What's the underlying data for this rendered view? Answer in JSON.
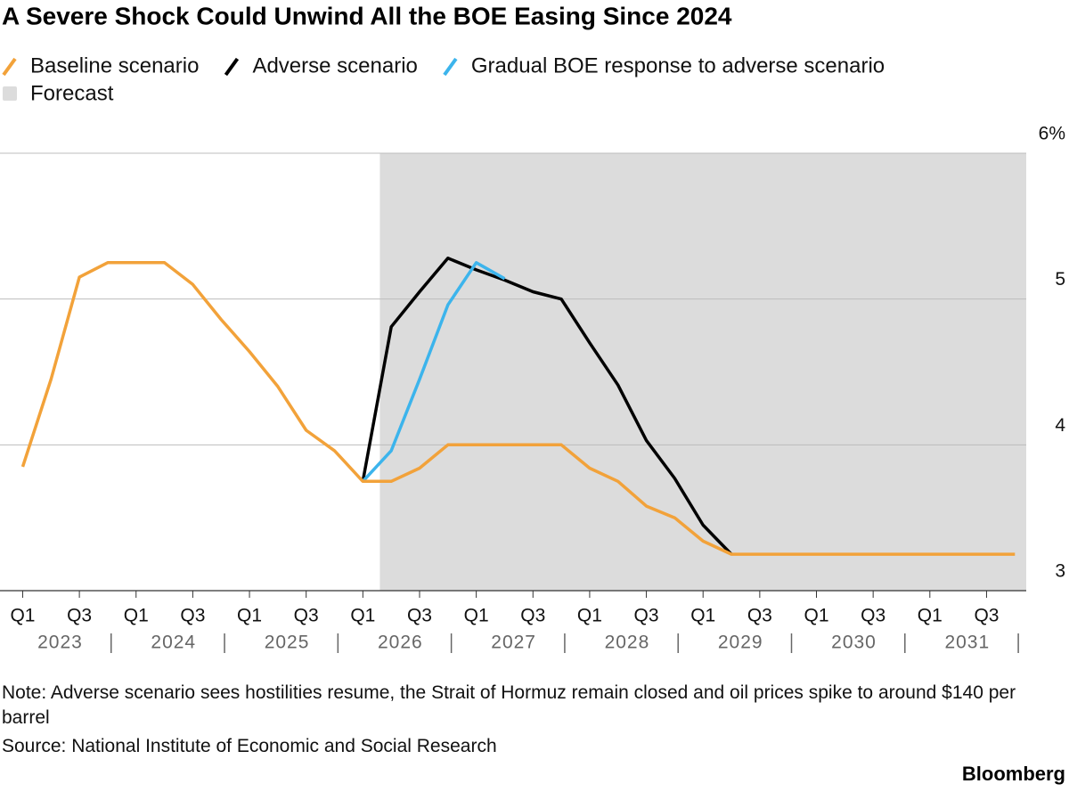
{
  "chart_data": {
    "type": "line",
    "title": "A Severe Shock Could Unwind All the BOE Easing Since 2024",
    "note": "Note: Adverse scenario sees hostilities resume, the Strait of Hormuz remain closed and oil prices spike to around $140 per barrel",
    "source": "Source: National Institute of Economic and Social Research",
    "brand": "Bloomberg",
    "forecast": {
      "label": "Forecast",
      "color": "#dcdcdc",
      "range": [
        2026.15,
        2031.85
      ]
    },
    "x": [
      2023,
      2023.25,
      2023.5,
      2023.75,
      2024,
      2024.25,
      2024.5,
      2024.75,
      2025,
      2025.25,
      2025.5,
      2025.75,
      2026,
      2026.25,
      2026.5,
      2026.75,
      2027,
      2027.25,
      2027.5,
      2027.75,
      2028,
      2028.25,
      2028.5,
      2028.75,
      2029,
      2029.25,
      2029.5,
      2029.75,
      2030,
      2030.25,
      2030.5,
      2030.75,
      2031,
      2031.25,
      2031.5,
      2031.75
    ],
    "series": [
      {
        "name": "Adverse scenario",
        "color": "#000000",
        "values": [
          null,
          null,
          null,
          null,
          null,
          null,
          null,
          null,
          null,
          null,
          null,
          null,
          3.75,
          4.81,
          5.05,
          5.28,
          5.2,
          5.13,
          5.05,
          5.0,
          4.7,
          4.41,
          4.03,
          3.77,
          3.45,
          3.25,
          null,
          null,
          null,
          null,
          null,
          null,
          null,
          null,
          null,
          null
        ]
      },
      {
        "name": "Gradual BOE response to adverse scenario",
        "color": "#3cb4ec",
        "values": [
          null,
          null,
          null,
          null,
          null,
          null,
          null,
          null,
          null,
          null,
          null,
          null,
          3.75,
          3.96,
          4.45,
          4.96,
          5.25,
          5.14,
          null,
          null,
          null,
          null,
          null,
          null,
          null,
          null,
          null,
          null,
          null,
          null,
          null,
          null,
          null,
          null,
          null,
          null
        ]
      },
      {
        "name": "Baseline scenario",
        "color": "#f2a23a",
        "values": [
          3.85,
          4.45,
          5.15,
          5.25,
          5.25,
          5.25,
          5.1,
          4.86,
          4.64,
          4.4,
          4.1,
          3.96,
          3.75,
          3.75,
          3.84,
          4.0,
          4.0,
          4.0,
          4.0,
          4.0,
          3.84,
          3.75,
          3.58,
          3.5,
          3.34,
          3.25,
          3.25,
          3.25,
          3.25,
          3.25,
          3.25,
          3.25,
          3.25,
          3.25,
          3.25,
          3.25
        ]
      }
    ],
    "legend_order": [
      2,
      0,
      1
    ],
    "xlim": [
      2022.8,
      2031.85
    ],
    "ylim": [
      3,
      6
    ],
    "yticks": [
      3,
      4,
      5,
      {
        "value": 6,
        "label": "6%"
      }
    ],
    "xticks": [
      {
        "value": 2023,
        "label": "Q1"
      },
      {
        "value": 2023.5,
        "label": "Q3"
      },
      {
        "value": 2024,
        "label": "Q1"
      },
      {
        "value": 2024.5,
        "label": "Q3"
      },
      {
        "value": 2025,
        "label": "Q1"
      },
      {
        "value": 2025.5,
        "label": "Q3"
      },
      {
        "value": 2026,
        "label": "Q1"
      },
      {
        "value": 2026.5,
        "label": "Q3"
      },
      {
        "value": 2027,
        "label": "Q1"
      },
      {
        "value": 2027.5,
        "label": "Q3"
      },
      {
        "value": 2028,
        "label": "Q1"
      },
      {
        "value": 2028.5,
        "label": "Q3"
      },
      {
        "value": 2029,
        "label": "Q1"
      },
      {
        "value": 2029.5,
        "label": "Q3"
      },
      {
        "value": 2030,
        "label": "Q1"
      },
      {
        "value": 2030.5,
        "label": "Q3"
      },
      {
        "value": 2031,
        "label": "Q1"
      },
      {
        "value": 2031.5,
        "label": "Q3"
      }
    ],
    "year_ticks": [
      2023,
      2024,
      2025,
      2026,
      2027,
      2028,
      2029,
      2030,
      2031
    ],
    "grid": true
  }
}
